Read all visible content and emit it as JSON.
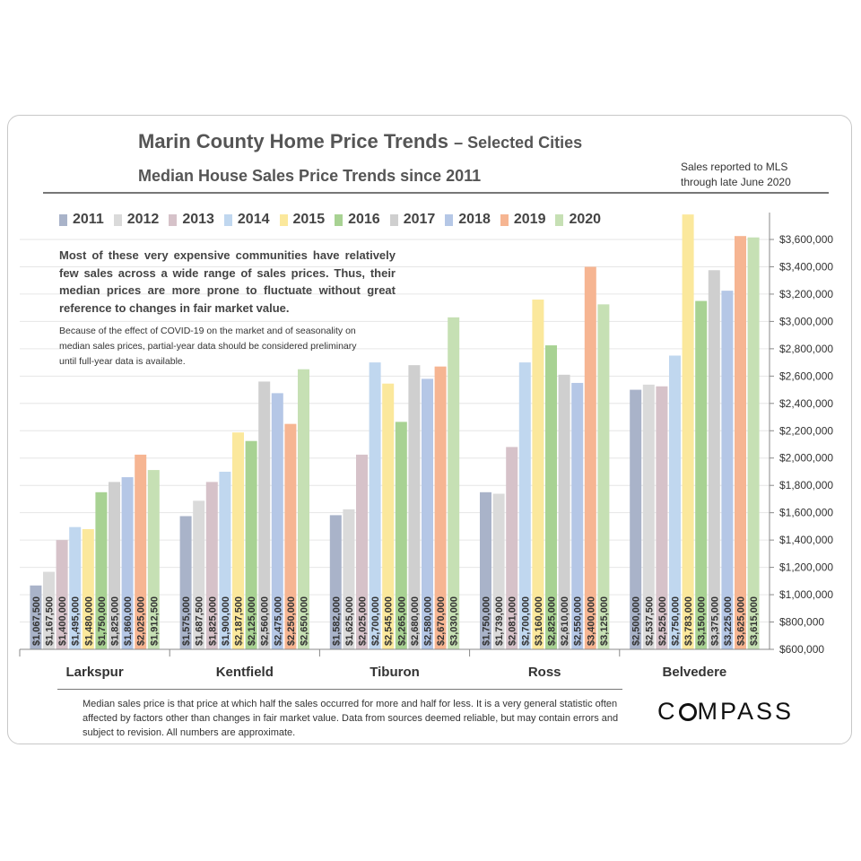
{
  "header": {
    "title_main": "Marin County Home Price Trends",
    "title_suffix": "– Selected Cities",
    "subtitle": "Median House Sales Price Trends since 2011",
    "mls_line1": "Sales reported to MLS",
    "mls_line2": "through late June 2020"
  },
  "notes": {
    "main": "Most of these very expensive communities have relatively few sales across a wide range of sales prices. Thus, their median prices are more prone to fluctuate without great reference to changes in fair market value.",
    "covid": "Because of the effect of COVID-19 on the market and of seasonality on median sales prices, partial-year data should be considered preliminary until full-year data is available."
  },
  "footer": {
    "disclaimer": "Median sales price is that price at which half the sales occurred for more and half for less. It is a very general statistic often affected by factors other than changes in fair market value. Data from sources deemed reliable, but may contain errors and subject to revision. All numbers are approximate.",
    "logo_a": "C",
    "logo_b": "MPASS"
  },
  "chart_data": {
    "type": "bar",
    "title": "Median House Sales Price Trends since 2011",
    "categories": [
      "Larkspur",
      "Kentfield",
      "Tiburon",
      "Ross",
      "Belvedere"
    ],
    "series": [
      {
        "name": "2011",
        "color": "#a9b3c9",
        "values": [
          1067500,
          1575000,
          1582000,
          1750000,
          2500000
        ],
        "labels": [
          "$1,067,500",
          "$1,575,000",
          "$1,582,000",
          "$1,750,000",
          "$2,500,000"
        ]
      },
      {
        "name": "2012",
        "color": "#dadada",
        "values": [
          1167500,
          1687500,
          1625000,
          1739000,
          2537500
        ],
        "labels": [
          "$1,167,500",
          "$1,687,500",
          "$1,625,000",
          "$1,739,000",
          "$2,537,500"
        ]
      },
      {
        "name": "2013",
        "color": "#d6c2c9",
        "values": [
          1400000,
          1825000,
          2025000,
          2081000,
          2525000
        ],
        "labels": [
          "$1,400,000",
          "$1,825,000",
          "$2,025,000",
          "$2,081,000",
          "$2,525,000"
        ]
      },
      {
        "name": "2014",
        "color": "#c0d7ef",
        "values": [
          1495000,
          1900000,
          2700000,
          2700000,
          2750000
        ],
        "labels": [
          "$1,495,000",
          "$1,900,000",
          "$2,700,000",
          "$2,700,000",
          "$2,750,000"
        ]
      },
      {
        "name": "2015",
        "color": "#fbe89c",
        "values": [
          1480000,
          2187500,
          2545000,
          3160000,
          3783000
        ],
        "labels": [
          "$1,480,000",
          "$2,187,500",
          "$2,545,000",
          "$3,160,000",
          "$3,783,000"
        ]
      },
      {
        "name": "2016",
        "color": "#a8d293",
        "values": [
          1750000,
          2125000,
          2265000,
          2825000,
          3150000
        ],
        "labels": [
          "$1,750,000",
          "$2,125,000",
          "$2,265,000",
          "$2,825,000",
          "$3,150,000"
        ]
      },
      {
        "name": "2017",
        "color": "#cfcfcf",
        "values": [
          1825000,
          2560000,
          2680000,
          2610000,
          3375000
        ],
        "labels": [
          "$1,825,000",
          "$2,560,000",
          "$2,680,000",
          "$2,610,000",
          "$3,375,000"
        ]
      },
      {
        "name": "2018",
        "color": "#b5c7e6",
        "values": [
          1860000,
          2475000,
          2580000,
          2550000,
          3225000
        ],
        "labels": [
          "$1,860,000",
          "$2,475,000",
          "$2,580,000",
          "$2,550,000",
          "$3,225,000"
        ]
      },
      {
        "name": "2019",
        "color": "#f6b592",
        "values": [
          2025000,
          2250000,
          2670000,
          3400000,
          3625000
        ],
        "labels": [
          "$2,025,000",
          "$2,250,000",
          "$2,670,000",
          "$3,400,000",
          "$3,625,000"
        ]
      },
      {
        "name": "2020",
        "color": "#c6e0b4",
        "values": [
          1912500,
          2650000,
          3030000,
          3125000,
          3615000
        ],
        "labels": [
          "$1,912,500",
          "$2,650,000",
          "$3,030,000",
          "$3,125,000",
          "$3,615,000"
        ]
      }
    ],
    "ylim": [
      600000,
      3800000
    ],
    "y_ticks": [
      600000,
      800000,
      1000000,
      1200000,
      1400000,
      1600000,
      1800000,
      2000000,
      2200000,
      2400000,
      2600000,
      2800000,
      3000000,
      3200000,
      3400000,
      3600000
    ],
    "y_tick_labels": [
      "$600,000",
      "$800,000",
      "$1,000,000",
      "$1,200,000",
      "$1,400,000",
      "$1,600,000",
      "$1,800,000",
      "$2,000,000",
      "$2,200,000",
      "$2,400,000",
      "$2,600,000",
      "$2,800,000",
      "$3,000,000",
      "$3,200,000",
      "$3,400,000",
      "$3,600,000"
    ],
    "xlabel": "",
    "ylabel": "",
    "grid": true,
    "legend": "top"
  }
}
